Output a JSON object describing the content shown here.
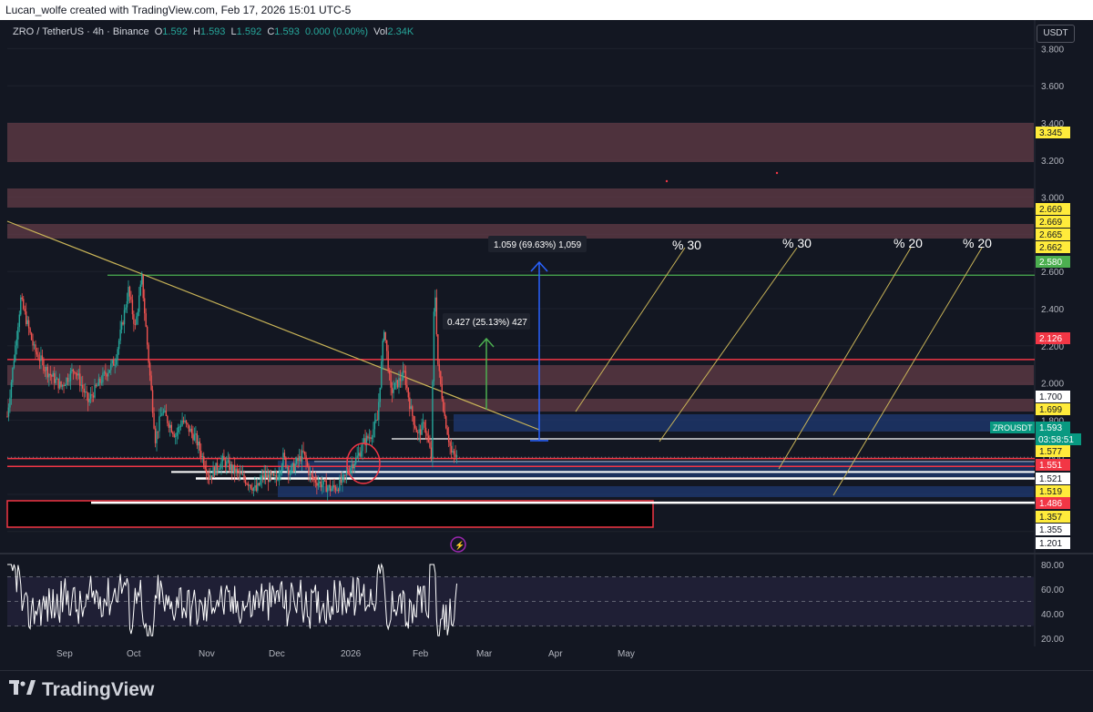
{
  "header": {
    "credit": "Lucan_wolfe created with TradingView.com, Feb 17, 2026 15:01 UTC-5",
    "symbol": "ZRO / TetherUS · 4h · Binance",
    "o_label": "O",
    "o_value": "1.592",
    "h_label": "H",
    "h_value": "1.593",
    "l_label": "L",
    "l_value": "1.592",
    "c_label": "C",
    "c_value": "1.593",
    "change": "0.000 (0.00%)",
    "vol_label": "Vol",
    "vol_value": "2.34K",
    "currency": "USDT"
  },
  "footer": {
    "brand": "TradingView"
  },
  "colors": {
    "background": "#131722",
    "up": "#26a69a",
    "down": "#ef5350",
    "zone_red": "#5e3a45",
    "zone_blue": "#1f3a73",
    "line_red": "#f23645",
    "line_green": "#4caf50",
    "trendline": "#c9b458",
    "measure_blue": "#2962ff"
  },
  "chart_data": [
    {
      "type": "line",
      "name": "ZRO / TetherUS 4h",
      "x_ticks": [
        "Sep",
        "Oct",
        "Nov",
        "Dec",
        "2026",
        "Feb",
        "Mar",
        "Apr",
        "May"
      ],
      "y_ticks": [
        3.8,
        3.6,
        3.4,
        3.2,
        3.0,
        2.8,
        2.6,
        2.4,
        2.2,
        2.0,
        1.8,
        1.6,
        1.4,
        1.2
      ],
      "ylim": [
        1.15,
        3.85
      ],
      "price_path": [
        [
          0,
          1.82
        ],
        [
          2,
          2.45
        ],
        [
          4,
          2.18
        ],
        [
          6,
          2.06
        ],
        [
          8,
          1.98
        ],
        [
          10,
          2.08
        ],
        [
          12,
          1.9
        ],
        [
          14,
          2.02
        ],
        [
          16,
          2.12
        ],
        [
          17,
          2.3
        ],
        [
          18,
          2.5
        ],
        [
          19,
          2.3
        ],
        [
          20,
          2.56
        ],
        [
          21,
          2.12
        ],
        [
          22,
          1.7
        ],
        [
          23,
          1.85
        ],
        [
          25,
          1.72
        ],
        [
          26,
          1.8
        ],
        [
          28,
          1.7
        ],
        [
          30,
          1.5
        ],
        [
          32,
          1.58
        ],
        [
          34,
          1.52
        ],
        [
          36,
          1.46
        ],
        [
          37,
          1.42
        ],
        [
          38,
          1.5
        ],
        [
          40,
          1.48
        ],
        [
          41,
          1.6
        ],
        [
          42,
          1.52
        ],
        [
          44,
          1.62
        ],
        [
          45,
          1.5
        ],
        [
          46,
          1.47
        ],
        [
          48,
          1.43
        ],
        [
          49,
          1.44
        ],
        [
          50,
          1.48
        ],
        [
          51,
          1.55
        ],
        [
          52,
          1.6
        ],
        [
          53,
          1.68
        ],
        [
          54,
          1.72
        ],
        [
          55,
          1.8
        ],
        [
          56,
          2.3
        ],
        [
          57,
          1.95
        ],
        [
          58,
          2.0
        ],
        [
          59,
          2.05
        ],
        [
          60,
          1.85
        ],
        [
          61,
          1.72
        ],
        [
          62,
          1.78
        ],
        [
          63,
          1.6
        ],
        [
          63.5,
          2.56
        ],
        [
          64,
          2.1
        ],
        [
          65,
          1.82
        ],
        [
          66,
          1.62
        ],
        [
          67,
          1.593
        ]
      ],
      "price_labels": [
        {
          "value": 3.345,
          "text": "3.345",
          "style": "yellow"
        },
        {
          "value": 2.669,
          "text": "2.669",
          "style": "yellow"
        },
        {
          "value": 2.669,
          "text": "2.669",
          "style": "yellow"
        },
        {
          "value": 2.665,
          "text": "2.665",
          "style": "yellow"
        },
        {
          "value": 2.662,
          "text": "2.662",
          "style": "yellow"
        },
        {
          "value": 2.58,
          "text": "2.580",
          "style": "green"
        },
        {
          "value": 2.126,
          "text": "2.126",
          "style": "red"
        },
        {
          "value": 1.7,
          "text": "1.700",
          "style": "white"
        },
        {
          "value": 1.699,
          "text": "1.699",
          "style": "yellow"
        },
        {
          "value": 1.593,
          "text": "1.593",
          "style": "teal"
        },
        {
          "value": 1.577,
          "text": "1.577",
          "style": "yellow"
        },
        {
          "value": 1.551,
          "text": "1.551",
          "style": "red"
        },
        {
          "value": 1.521,
          "text": "1.521",
          "style": "white"
        },
        {
          "value": 1.519,
          "text": "1.519",
          "style": "yellow"
        },
        {
          "value": 1.486,
          "text": "1.486",
          "style": "red"
        },
        {
          "value": 1.357,
          "text": "1.357",
          "style": "yellow"
        },
        {
          "value": 1.355,
          "text": "1.355",
          "style": "white"
        },
        {
          "value": 1.201,
          "text": "1.201",
          "style": "white"
        }
      ],
      "symbol_tag": "ZROUSDT",
      "countdown": "03:58:51",
      "annotations": [
        {
          "text": "1.059 (69.63%) 1,059"
        },
        {
          "text": "0.427 (25.13%) 427"
        },
        {
          "text": "% 30"
        },
        {
          "text": "% 30"
        },
        {
          "text": "% 20"
        },
        {
          "text": "% 20"
        }
      ]
    },
    {
      "type": "line",
      "name": "RSI",
      "y_ticks": [
        80.0,
        60.0,
        40.0,
        20.0
      ],
      "ylim": [
        15,
        85
      ],
      "band": [
        30,
        70
      ]
    }
  ]
}
